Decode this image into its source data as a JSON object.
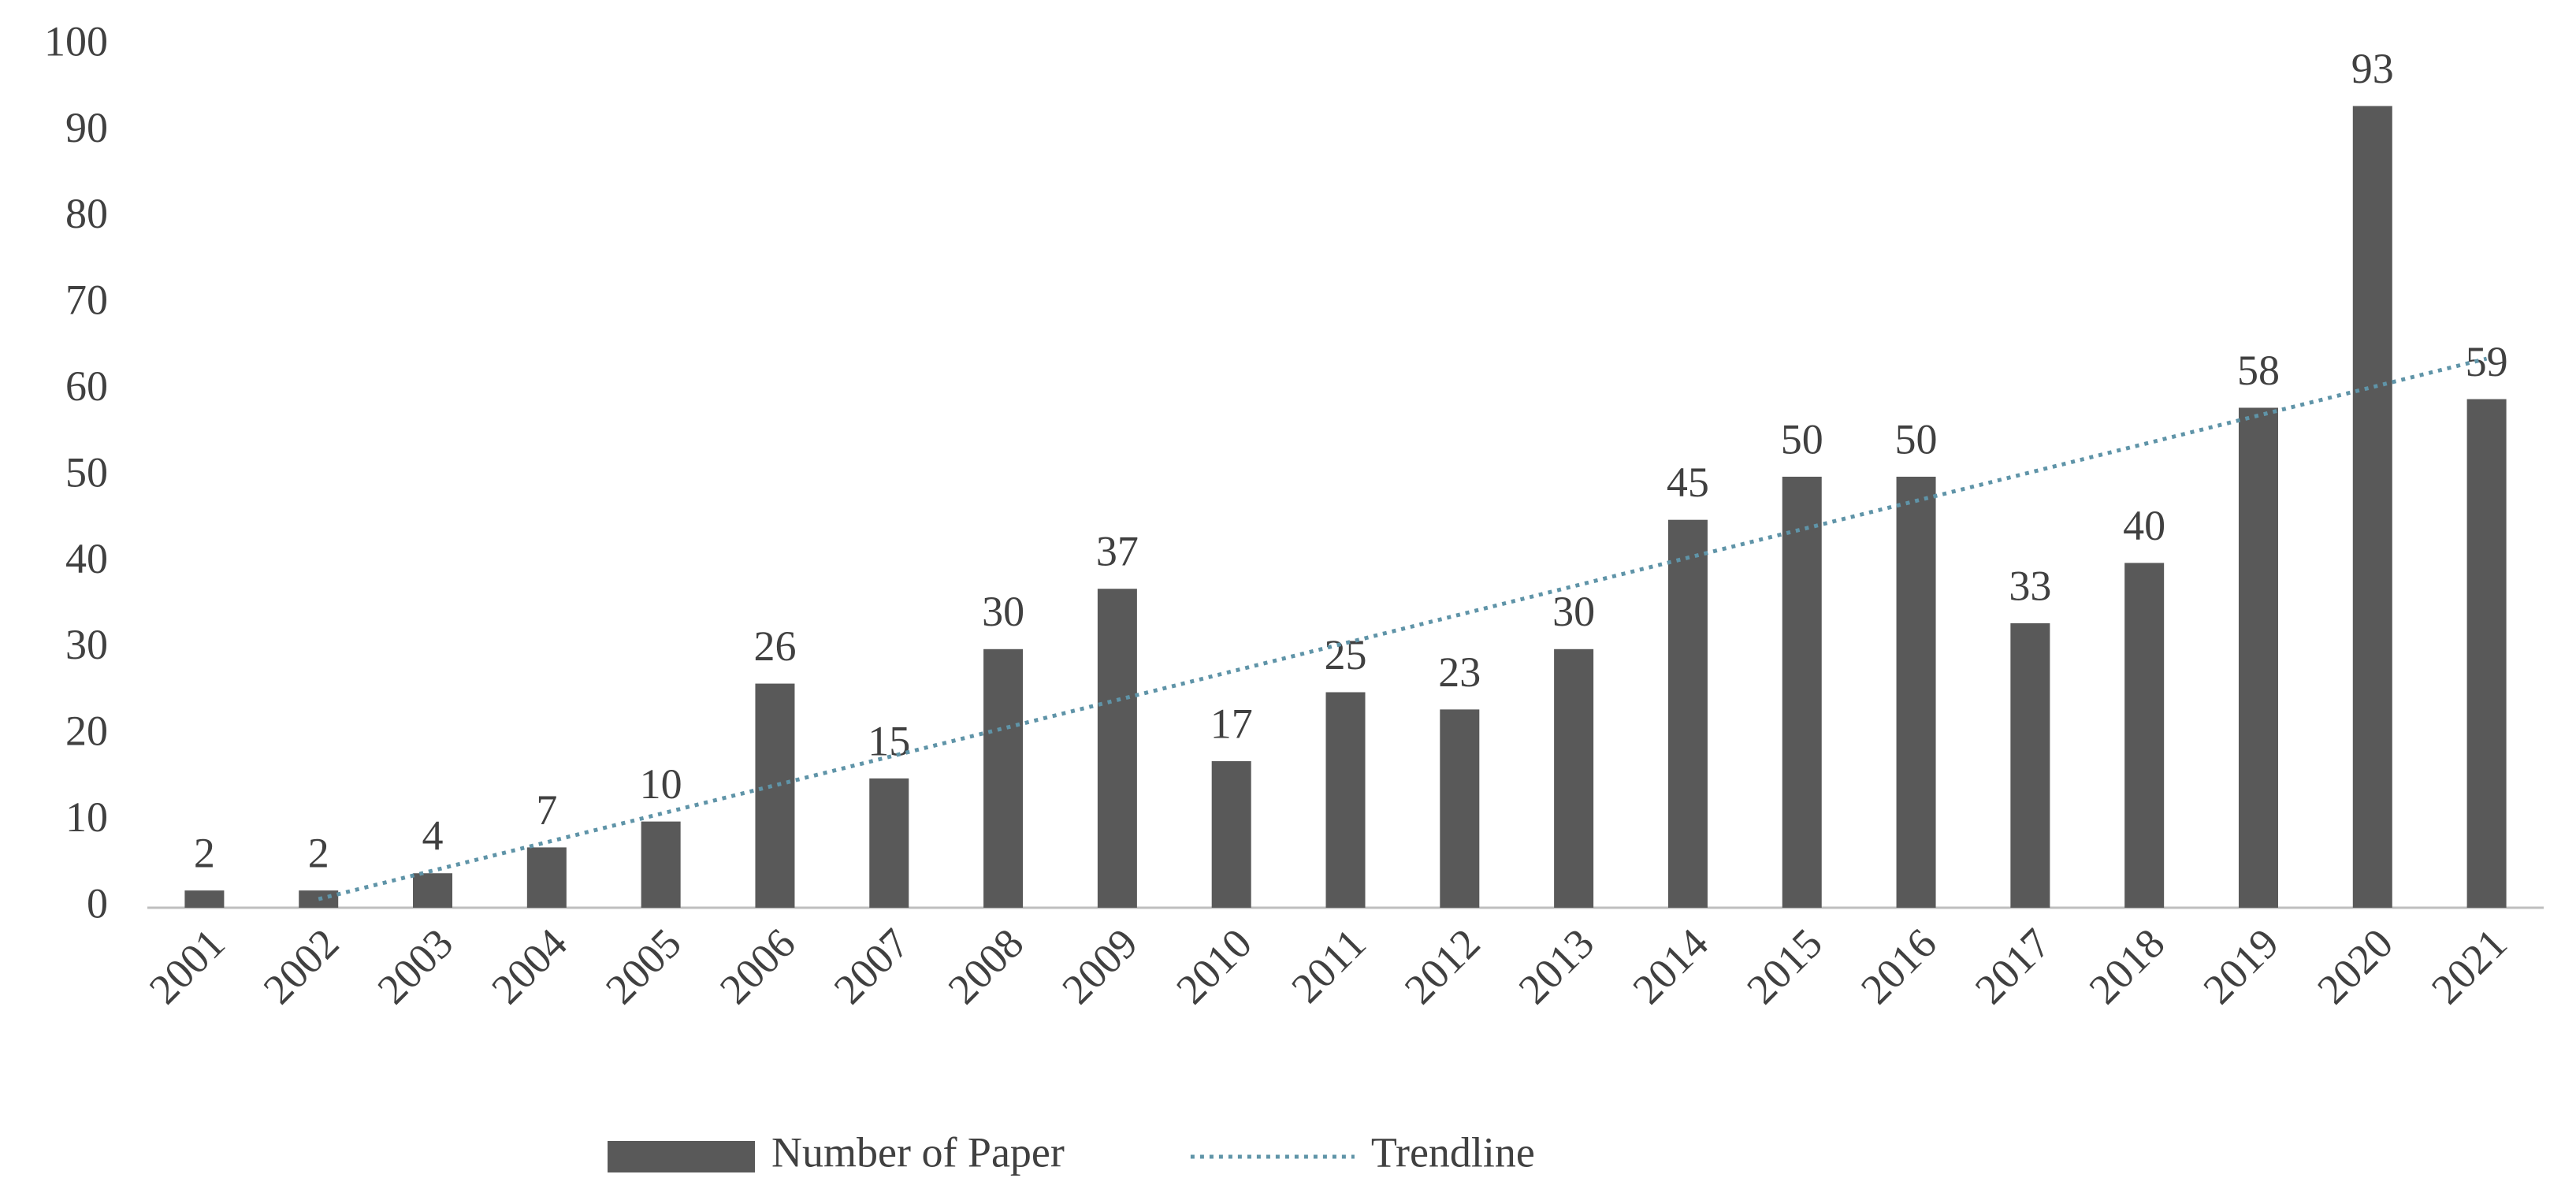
{
  "chart_data": {
    "type": "bar",
    "categories": [
      "2001",
      "2002",
      "2003",
      "2004",
      "2005",
      "2006",
      "2007",
      "2008",
      "2009",
      "2010",
      "2011",
      "2012",
      "2013",
      "2014",
      "2015",
      "2016",
      "2017",
      "2018",
      "2019",
      "2020",
      "2021"
    ],
    "series": [
      {
        "name": "Number of Paper",
        "type": "bar",
        "color": "#595959",
        "values": [
          2,
          2,
          4,
          7,
          10,
          26,
          15,
          30,
          37,
          17,
          25,
          23,
          30,
          45,
          50,
          50,
          33,
          40,
          58,
          93,
          59
        ]
      },
      {
        "name": "Trendline",
        "type": "line",
        "color": "#5f94a8",
        "values": [
          null,
          1.0,
          4.3,
          7.6,
          10.9,
          14.2,
          17.5,
          20.8,
          24.1,
          27.4,
          30.7,
          34.0,
          37.3,
          40.6,
          43.9,
          47.2,
          50.5,
          53.8,
          57.1,
          60.4,
          63.7
        ]
      }
    ],
    "ylim": [
      0,
      100
    ],
    "yticks": [
      0,
      10,
      20,
      30,
      40,
      50,
      60,
      70,
      80,
      90,
      100
    ],
    "grid": false,
    "legend": "bottom"
  }
}
